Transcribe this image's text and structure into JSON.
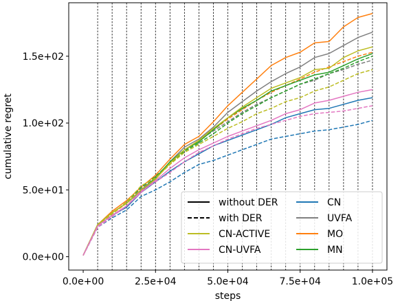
{
  "chart_data": {
    "type": "line",
    "xlabel": "steps",
    "ylabel": "cumulative regret",
    "xlim": [
      -5000,
      105000
    ],
    "ylim": [
      -10,
      190
    ],
    "xticks": [
      {
        "value": 0,
        "label": "0.0e+00"
      },
      {
        "value": 25000,
        "label": "2.5e+04"
      },
      {
        "value": 50000,
        "label": "5.0e+04"
      },
      {
        "value": 75000,
        "label": "7.5e+04"
      },
      {
        "value": 100000,
        "label": "1.0e+05"
      }
    ],
    "yticks": [
      {
        "value": 0,
        "label": "0.0e+00"
      },
      {
        "value": 50,
        "label": "5.0e+01"
      },
      {
        "value": 100,
        "label": "1.0e+02"
      },
      {
        "value": 150,
        "label": "1.5e+02"
      }
    ],
    "vlines": [
      5000,
      10000,
      15000,
      20000,
      25000,
      30000,
      35000,
      40000,
      45000,
      50000,
      55000,
      60000,
      65000,
      70000,
      75000,
      80000,
      85000,
      90000,
      95000,
      100000
    ],
    "x": [
      0,
      5000,
      10000,
      15000,
      20000,
      25000,
      30000,
      35000,
      40000,
      45000,
      50000,
      55000,
      60000,
      65000,
      70000,
      75000,
      80000,
      85000,
      90000,
      95000,
      100000
    ],
    "series": [
      {
        "name": "CN",
        "style": "solid",
        "color": "#1f77b4",
        "values": [
          1,
          23,
          31,
          37,
          48,
          56,
          64,
          71,
          77,
          83,
          87,
          91,
          95,
          99,
          104,
          107,
          110,
          111,
          114,
          117,
          119
        ]
      },
      {
        "name": "CN",
        "style": "dashed",
        "color": "#1f77b4",
        "values": [
          1,
          22,
          29,
          35,
          45,
          50,
          56,
          63,
          69,
          72,
          76,
          80,
          84,
          88,
          90,
          92,
          94,
          95,
          97,
          99,
          102
        ]
      },
      {
        "name": "UVFA",
        "style": "solid",
        "color": "#7f7f7f",
        "values": [
          1,
          24,
          33,
          40,
          49,
          58,
          71,
          82,
          88,
          97,
          108,
          116,
          124,
          131,
          137,
          142,
          149,
          152,
          158,
          164,
          168
        ]
      },
      {
        "name": "UVFA",
        "style": "dashed",
        "color": "#7f7f7f",
        "values": [
          1,
          23,
          32,
          41,
          51,
          60,
          70,
          79,
          87,
          94,
          101,
          108,
          114,
          119,
          124,
          129,
          132,
          137,
          140,
          144,
          147
        ]
      },
      {
        "name": "MO",
        "style": "solid",
        "color": "#ff7f0e",
        "values": [
          1,
          24,
          34,
          42,
          52,
          61,
          73,
          84,
          90,
          101,
          113,
          123,
          133,
          143,
          149,
          153,
          160,
          161,
          172,
          179,
          182
        ]
      },
      {
        "name": "MO",
        "style": "dashed",
        "color": "#ff7f0e",
        "values": [
          1,
          23,
          32,
          40,
          50,
          59,
          69,
          80,
          87,
          95,
          103,
          110,
          117,
          123,
          128,
          133,
          138,
          142,
          146,
          150,
          153
        ]
      },
      {
        "name": "MN",
        "style": "solid",
        "color": "#2ca02c",
        "values": [
          1,
          24,
          33,
          40,
          50,
          59,
          71,
          80,
          86,
          95,
          104,
          111,
          117,
          124,
          128,
          132,
          136,
          138,
          143,
          148,
          152
        ]
      },
      {
        "name": "MN",
        "style": "dashed",
        "color": "#2ca02c",
        "values": [
          1,
          23,
          32,
          41,
          52,
          60,
          70,
          79,
          85,
          92,
          100,
          107,
          113,
          119,
          124,
          129,
          133,
          137,
          141,
          146,
          150
        ]
      },
      {
        "name": "CN-ACTIVE",
        "style": "solid",
        "color": "#bcbd22",
        "values": [
          1,
          24,
          33,
          40,
          50,
          58,
          70,
          80,
          87,
          96,
          104,
          112,
          119,
          126,
          130,
          134,
          140,
          141,
          149,
          154,
          157
        ]
      },
      {
        "name": "CN-ACTIVE",
        "style": "dashed",
        "color": "#bcbd22",
        "values": [
          1,
          23,
          32,
          41,
          53,
          59,
          69,
          78,
          84,
          90,
          96,
          101,
          107,
          111,
          116,
          119,
          124,
          127,
          132,
          137,
          140
        ]
      },
      {
        "name": "CN-UVFA",
        "style": "solid",
        "color": "#e377c2",
        "values": [
          1,
          23,
          31,
          38,
          48,
          57,
          66,
          74,
          80,
          85,
          90,
          94,
          98,
          102,
          107,
          110,
          115,
          117,
          120,
          123,
          125
        ]
      },
      {
        "name": "CN-UVFA",
        "style": "dashed",
        "color": "#e377c2",
        "values": [
          1,
          22,
          30,
          38,
          49,
          56,
          63,
          71,
          78,
          83,
          88,
          92,
          96,
          99,
          102,
          105,
          107,
          108,
          109,
          111,
          113
        ]
      }
    ],
    "legend": {
      "placement": "lower-right",
      "entries": [
        {
          "label": "without DER",
          "style": "solid",
          "color": "#000000"
        },
        {
          "label": "with DER",
          "style": "dashed",
          "color": "#000000"
        },
        {
          "label": "CN-ACTIVE",
          "style": "solid",
          "color": "#bcbd22"
        },
        {
          "label": "CN-UVFA",
          "style": "solid",
          "color": "#e377c2"
        },
        {
          "label": "CN",
          "style": "solid",
          "color": "#1f77b4"
        },
        {
          "label": "UVFA",
          "style": "solid",
          "color": "#7f7f7f"
        },
        {
          "label": "MO",
          "style": "solid",
          "color": "#ff7f0e"
        },
        {
          "label": "MN",
          "style": "solid",
          "color": "#2ca02c"
        }
      ]
    }
  }
}
